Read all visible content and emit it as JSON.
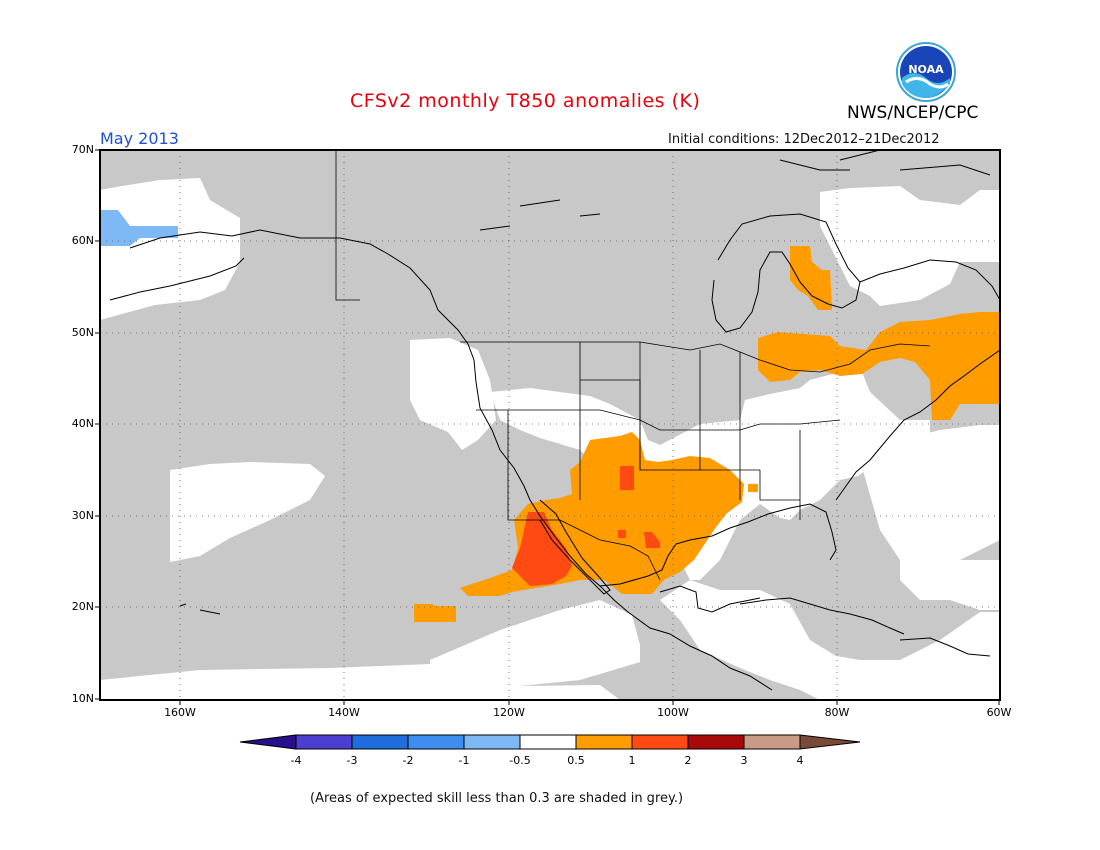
{
  "header": {
    "title": "CFSv2 monthly T850 anomalies (K)",
    "month": "May 2013",
    "initial_conditions": "Initial conditions: 12Dec2012–21Dec2012",
    "agency": "NWS/NCEP/CPC",
    "logo_text": "NOAA"
  },
  "map": {
    "lat_labels": [
      "70N",
      "60N",
      "50N",
      "40N",
      "30N",
      "20N",
      "10N"
    ],
    "lon_labels": [
      "160W",
      "140W",
      "120W",
      "100W",
      "80W",
      "60W"
    ],
    "skill_color": "#c8c8c8",
    "grid": "dotted"
  },
  "colorbar": {
    "labels": [
      "-4",
      "-3",
      "-2",
      "-1",
      "-0.5",
      "0.5",
      "1",
      "2",
      "3",
      "4"
    ],
    "colors": [
      "#2a0f8c",
      "#4a3fd0",
      "#1f6ddc",
      "#3d8ef0",
      "#7eb8f5",
      "#ffffff",
      "#ff9c00",
      "#ff4a14",
      "#a80a0a",
      "#c79b85",
      "#7a4a38"
    ]
  },
  "footnote": "(Areas of expected skill less than 0.3 are shaded in grey.)"
}
